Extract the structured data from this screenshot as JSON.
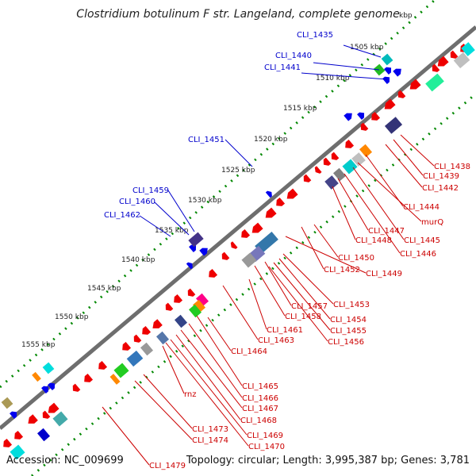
{
  "title": "Clostridium botulinum F str. Langeland, complete genome",
  "footer": {
    "accession": "Accession: NC_009699",
    "summary": "Topology: circular; Length: 3,995,387 bp; Genes: 3,781"
  },
  "colors": {
    "backbone": "#6e6e6e",
    "cds": "#ee0000",
    "forward_feature": "#0000ee",
    "tick": "#008800",
    "label_forward": "#0000cc",
    "label_reverse": "#cc0000"
  },
  "scale_labels": [
    "kbp",
    "1505 kbp",
    "1510 kbp",
    "1515 kbp",
    "1520 kbp",
    "1525 kbp",
    "1530 kbp",
    "1535 kbp",
    "1540 kbp",
    "1545 kbp",
    "1550 kbp",
    "1555 kbp"
  ],
  "forward_labels": [
    "CLI_1435",
    "CLI_1440",
    "CLI_1441",
    "CLI_1451",
    "CLI_1459",
    "CLI_1460",
    "CLI_1462"
  ],
  "reverse_labels": [
    "CLI_1438",
    "CLI_1439",
    "CLI_1442",
    "CLI_1444",
    "murQ",
    "CLI_1445",
    "CLI_1446",
    "CLI_1447",
    "CLI_1448",
    "CLI_1450",
    "CLI_1449",
    "CLI_1452",
    "CLI_1453",
    "CLI_1454",
    "CLI_1455",
    "CLI_1456",
    "CLI_1457",
    "CLI_1458",
    "CLI_1461",
    "CLI_1463",
    "CLI_1464",
    "CLI_1465",
    "CLI_1466",
    "CLI_1467",
    "CLI_1468",
    "CLI_1469",
    "CLI_1470",
    "rnz",
    "CLI_1473",
    "CLI_1474",
    "CLI_1479"
  ]
}
